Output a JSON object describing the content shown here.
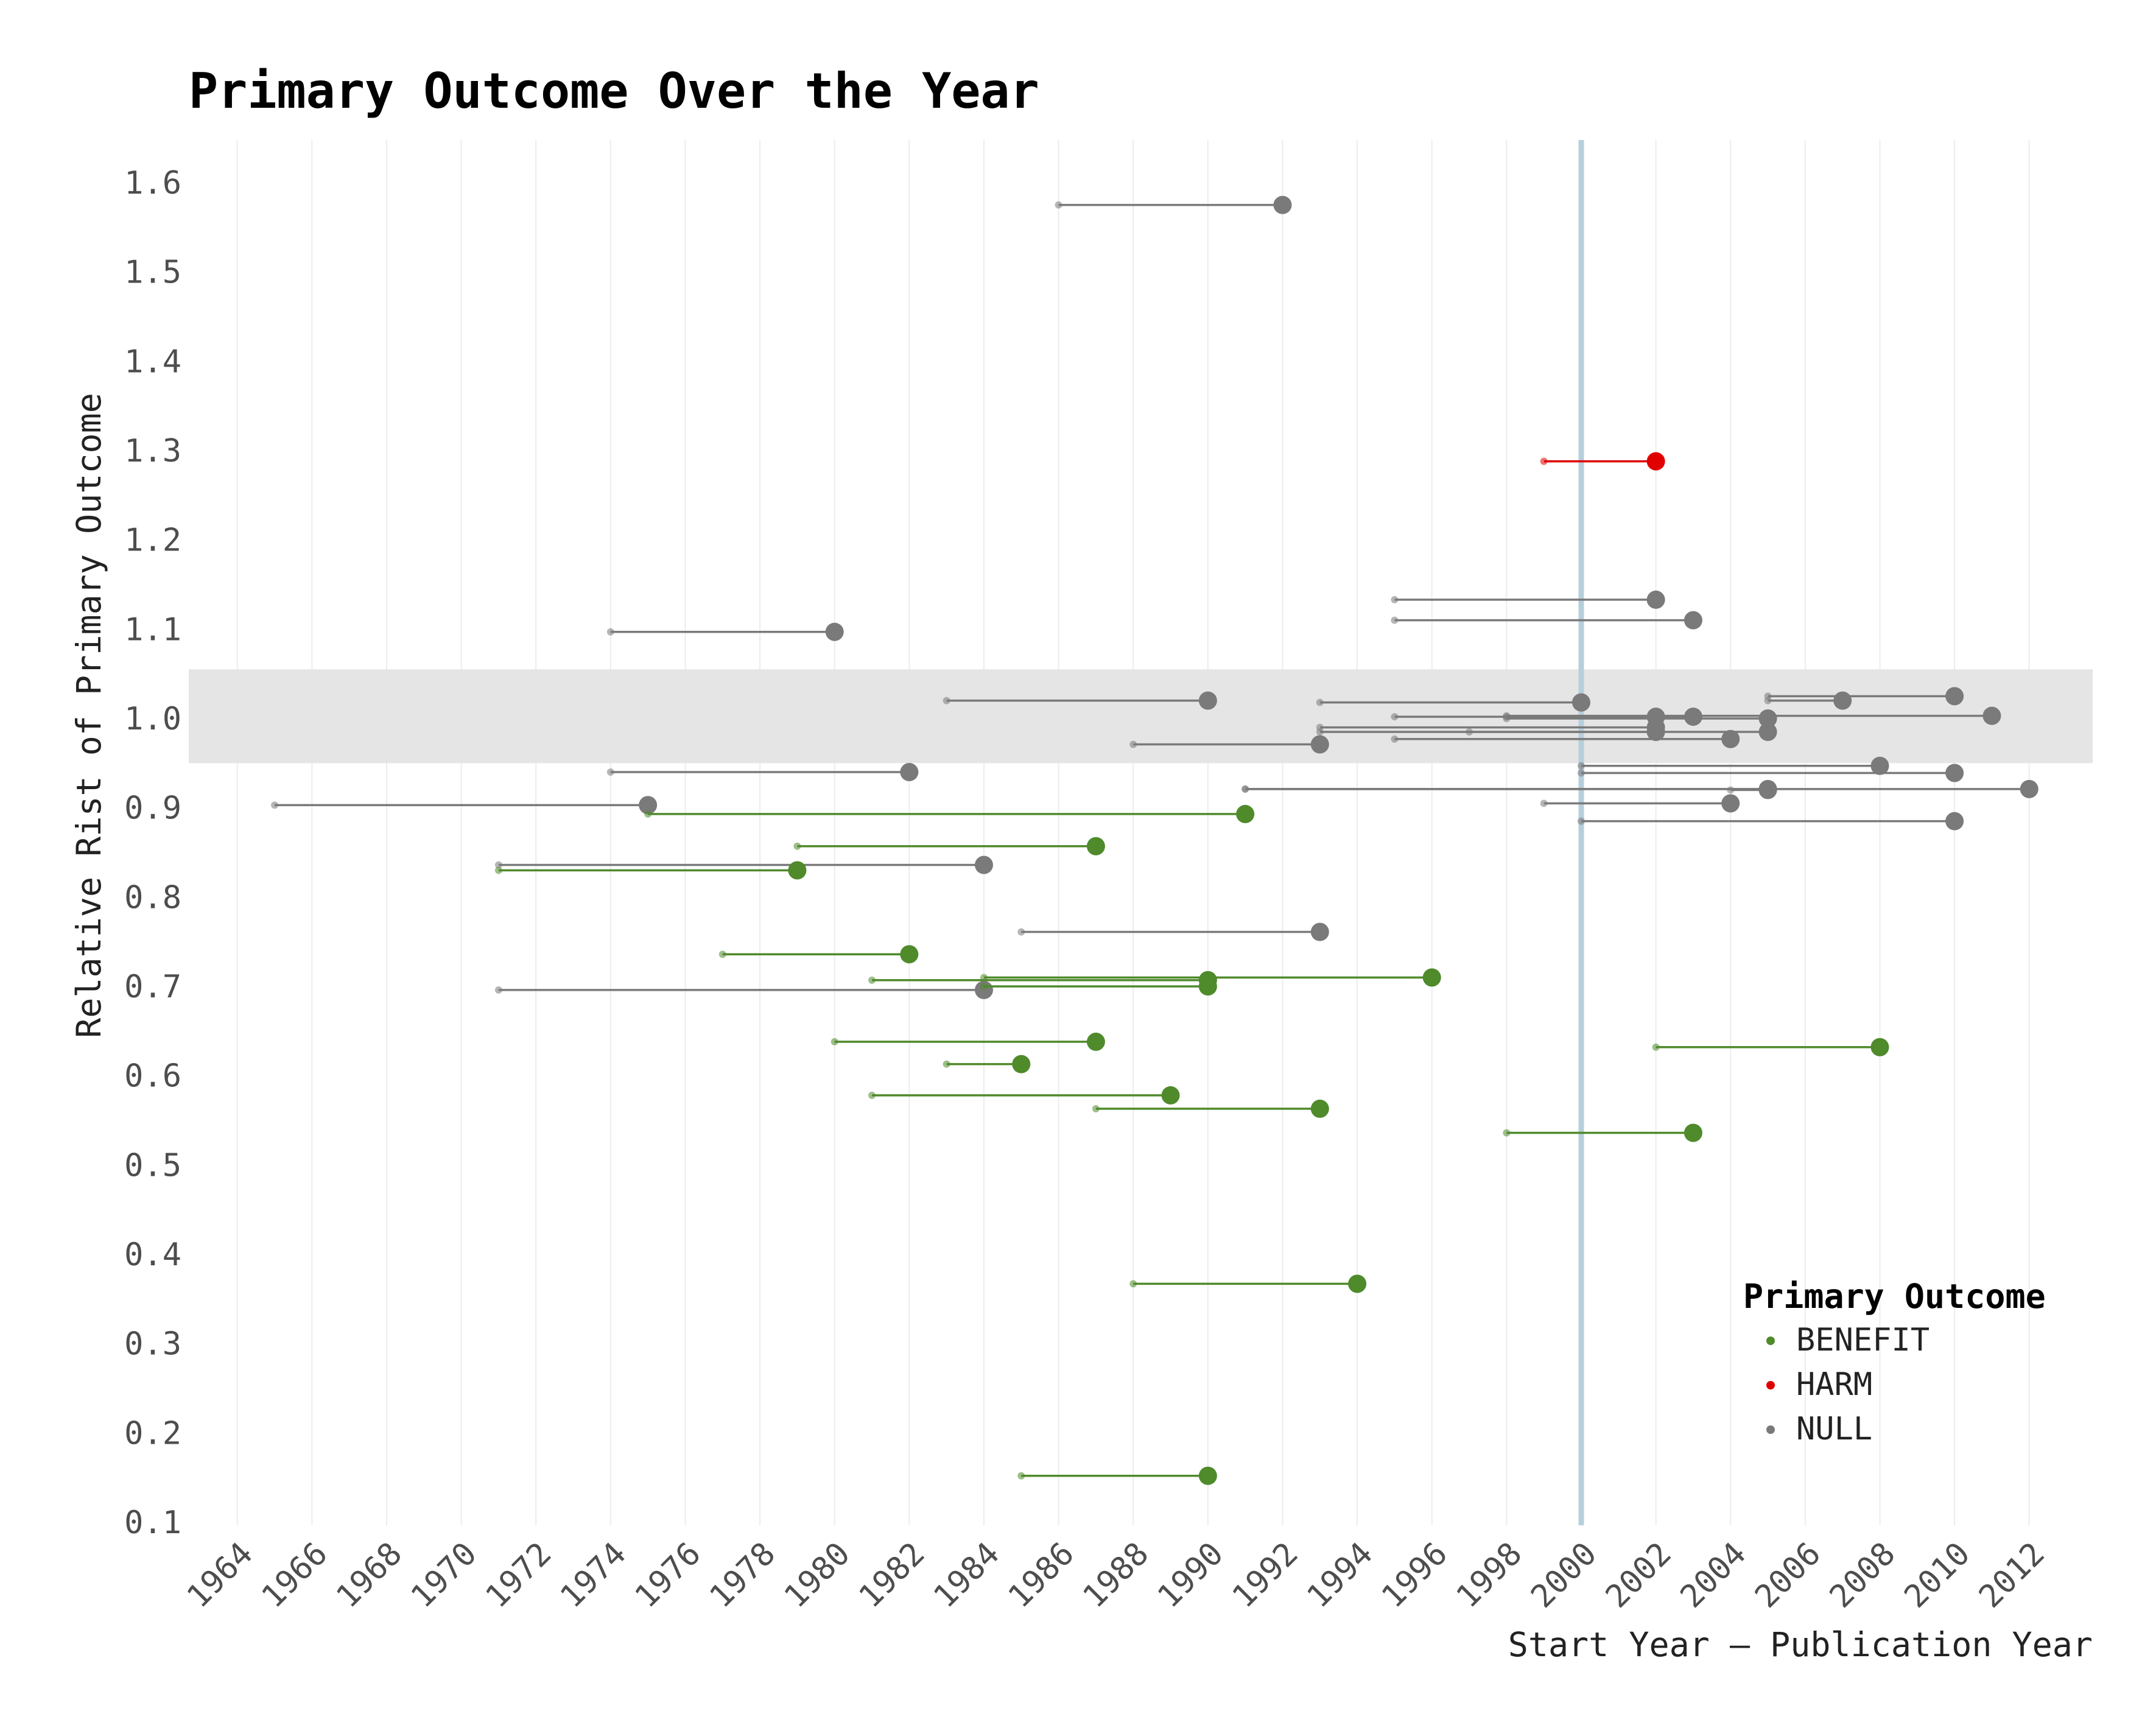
{
  "chart_data": {
    "type": "dumbbell",
    "title": "Primary Outcome Over the Year",
    "xlabel": "Start Year — Publication Year",
    "ylabel": "Relative Rist of Primary Outcome",
    "xlim": [
      1962.7,
      2013.7
    ],
    "ylim": [
      0.1,
      1.65
    ],
    "x_ticks": [
      1964,
      1966,
      1968,
      1970,
      1972,
      1974,
      1976,
      1978,
      1980,
      1982,
      1984,
      1986,
      1988,
      1990,
      1992,
      1994,
      1996,
      1998,
      2000,
      2002,
      2004,
      2006,
      2008,
      2010,
      2012
    ],
    "y_ticks": [
      0.1,
      0.2,
      0.3,
      0.4,
      0.5,
      0.6,
      0.7,
      0.8,
      0.9,
      1.0,
      1.1,
      1.2,
      1.3,
      1.4,
      1.5,
      1.6
    ],
    "reference_band": [
      0.95,
      1.055
    ],
    "reference_line_x": 2000,
    "grid": "vertical",
    "legend": {
      "title": "Primary Outcome",
      "position": "bottom-right",
      "entries": [
        "BENEFIT",
        "HARM",
        "NULL"
      ]
    },
    "colors": {
      "BENEFIT": "#4f8a2b",
      "HARM": "#e00000",
      "NULL": "#7a7a7a",
      "band": "#e5e5e5",
      "ref_line": "#b6cfdc"
    },
    "series": [
      {
        "name": "NULL",
        "segments": [
          {
            "start": 1986,
            "end": 1992,
            "y": 1.575
          },
          {
            "start": 1995,
            "end": 2002,
            "y": 1.133
          },
          {
            "start": 1995,
            "end": 2003,
            "y": 1.11
          },
          {
            "start": 1974,
            "end": 1980,
            "y": 1.097
          },
          {
            "start": 2005,
            "end": 2010,
            "y": 1.025
          },
          {
            "start": 2005,
            "end": 2007,
            "y": 1.02
          },
          {
            "start": 1983,
            "end": 1990,
            "y": 1.02
          },
          {
            "start": 1993,
            "end": 2000,
            "y": 1.018
          },
          {
            "start": 1995,
            "end": 2002,
            "y": 1.002
          },
          {
            "start": 1998,
            "end": 2003,
            "y": 1.002
          },
          {
            "start": 1998,
            "end": 2005,
            "y": 1.0
          },
          {
            "start": 1998,
            "end": 2011,
            "y": 1.003
          },
          {
            "start": 1993,
            "end": 2002,
            "y": 0.99
          },
          {
            "start": 1993,
            "end": 2002,
            "y": 0.985
          },
          {
            "start": 1997,
            "end": 2005,
            "y": 0.985
          },
          {
            "start": 1995,
            "end": 2004,
            "y": 0.977
          },
          {
            "start": 1988,
            "end": 1993,
            "y": 0.971
          },
          {
            "start": 2000,
            "end": 2008,
            "y": 0.947
          },
          {
            "start": 1974,
            "end": 1982,
            "y": 0.94
          },
          {
            "start": 2000,
            "end": 2010,
            "y": 0.939
          },
          {
            "start": 1991,
            "end": 2005,
            "y": 0.921
          },
          {
            "start": 1991,
            "end": 2012,
            "y": 0.921
          },
          {
            "start": 2004,
            "end": 2005,
            "y": 0.92
          },
          {
            "start": 1999,
            "end": 2004,
            "y": 0.905
          },
          {
            "start": 1965,
            "end": 1975,
            "y": 0.903
          },
          {
            "start": 2000,
            "end": 2010,
            "y": 0.885
          },
          {
            "start": 1971,
            "end": 1984,
            "y": 0.836
          },
          {
            "start": 1985,
            "end": 1993,
            "y": 0.761
          },
          {
            "start": 1971,
            "end": 1984,
            "y": 0.696
          }
        ]
      },
      {
        "name": "HARM",
        "segments": [
          {
            "start": 1999,
            "end": 2002,
            "y": 1.288
          }
        ]
      },
      {
        "name": "BENEFIT",
        "segments": [
          {
            "start": 1975,
            "end": 1991,
            "y": 0.893
          },
          {
            "start": 1979,
            "end": 1987,
            "y": 0.857
          },
          {
            "start": 1971,
            "end": 1979,
            "y": 0.83
          },
          {
            "start": 1977,
            "end": 1982,
            "y": 0.736
          },
          {
            "start": 1984,
            "end": 1996,
            "y": 0.71
          },
          {
            "start": 1981,
            "end": 1990,
            "y": 0.707
          },
          {
            "start": 1984,
            "end": 1990,
            "y": 0.7
          },
          {
            "start": 1980,
            "end": 1987,
            "y": 0.638
          },
          {
            "start": 2002,
            "end": 2008,
            "y": 0.632
          },
          {
            "start": 1983,
            "end": 1985,
            "y": 0.613
          },
          {
            "start": 1981,
            "end": 1989,
            "y": 0.578
          },
          {
            "start": 1987,
            "end": 1993,
            "y": 0.563
          },
          {
            "start": 1998,
            "end": 2003,
            "y": 0.536
          },
          {
            "start": 1988,
            "end": 1994,
            "y": 0.367
          },
          {
            "start": 1985,
            "end": 1990,
            "y": 0.152
          }
        ]
      }
    ]
  }
}
